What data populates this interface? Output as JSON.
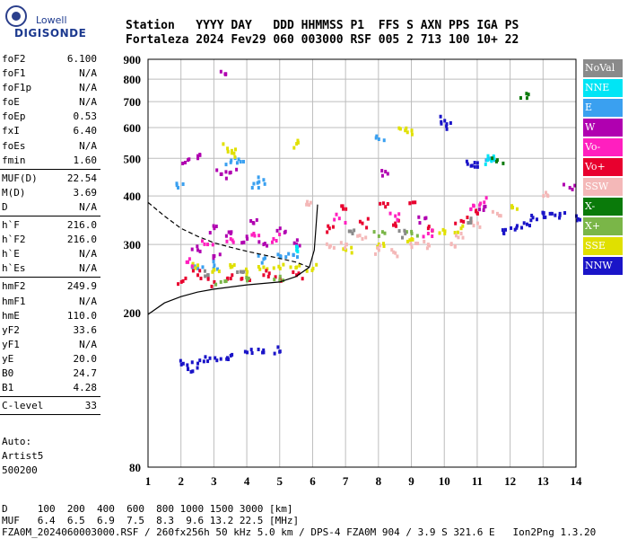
{
  "logo": {
    "line1": "Lowell",
    "line2": "DIGISONDE"
  },
  "header": {
    "line1": "Station   YYYY DAY   DDD HHMMSS P1  FFS S AXN PPS IGA PS",
    "line2": "Fortaleza 2024 Fev29 060 003000 RSF 005 2 713 100 10+ 22"
  },
  "params": {
    "group1": [
      {
        "k": "foF2",
        "v": "6.100"
      },
      {
        "k": "foF1",
        "v": "N/A"
      },
      {
        "k": "foF1p",
        "v": "N/A"
      },
      {
        "k": "foE",
        "v": "N/A"
      },
      {
        "k": "foEp",
        "v": "0.53"
      },
      {
        "k": "fxI",
        "v": "6.40"
      },
      {
        "k": "foEs",
        "v": "N/A"
      },
      {
        "k": "fmin",
        "v": "1.60"
      }
    ],
    "group2": [
      {
        "k": "MUF(D)",
        "v": "22.54"
      },
      {
        "k": "M(D)",
        "v": "3.69"
      },
      {
        "k": "D",
        "v": "N/A"
      }
    ],
    "group3": [
      {
        "k": "h`F",
        "v": "216.0"
      },
      {
        "k": "h`F2",
        "v": "216.0"
      },
      {
        "k": "h`E",
        "v": "N/A"
      },
      {
        "k": "h`Es",
        "v": "N/A"
      }
    ],
    "group4": [
      {
        "k": "hmF2",
        "v": "249.9"
      },
      {
        "k": "hmF1",
        "v": "N/A"
      },
      {
        "k": "hmE",
        "v": "110.0"
      },
      {
        "k": "yF2",
        "v": "33.6"
      },
      {
        "k": "yF1",
        "v": "N/A"
      },
      {
        "k": "yE",
        "v": "20.0"
      },
      {
        "k": "B0",
        "v": "24.7"
      },
      {
        "k": "B1",
        "v": "4.28"
      }
    ],
    "group5": [
      {
        "k": "C-level",
        "v": "33"
      }
    ]
  },
  "auto": {
    "l1": "Auto:",
    "l2": "Artist5",
    "l3": "500200"
  },
  "footer": {
    "l1": "D     100  200  400  600  800 1000 1500 3000 [km]",
    "l2": "MUF   6.4  6.5  6.9  7.5  8.3  9.6 13.2 22.5 [MHz]",
    "l3": "FZA0M_2024060003000.RSF / 260fx256h 50 kHz 5.0 km / DPS-4 FZA0M 904 / 3.9 S 321.6 E   Ion2Png 1.3.20"
  },
  "legend": [
    {
      "label": "NoVal",
      "color": "#8a8a8a"
    },
    {
      "label": "NNE",
      "color": "#00e5f5"
    },
    {
      "label": "E",
      "color": "#3aa0f0"
    },
    {
      "label": "W",
      "color": "#b000b0"
    },
    {
      "label": "Vo-",
      "color": "#ff1fbf"
    },
    {
      "label": "Vo+",
      "color": "#e8002e"
    },
    {
      "label": "SSW",
      "color": "#f4b8b8"
    },
    {
      "label": "X-",
      "color": "#0a7a0a"
    },
    {
      "label": "X+",
      "color": "#7ab648"
    },
    {
      "label": "SSE",
      "color": "#e0e000"
    },
    {
      "label": "NNW",
      "color": "#1a14c8"
    }
  ],
  "chart_data": {
    "type": "scatter",
    "title": "",
    "xlabel": "",
    "ylabel": "",
    "xlim": [
      1,
      14
    ],
    "ylim": [
      80,
      900
    ],
    "y_scale": "log",
    "x_ticks": [
      "1",
      "2",
      "3",
      "4",
      "5",
      "6",
      "7",
      "8",
      "9",
      "10",
      "11",
      "12",
      "13",
      "14"
    ],
    "y_ticks": [
      "80",
      "200",
      "300",
      "400",
      "500",
      "600",
      "700",
      "800",
      "900"
    ],
    "grid": true,
    "legend_placement": "right",
    "series": [
      {
        "name": "W",
        "points": [
          [
            3.35,
            825
          ],
          [
            2.2,
            495
          ],
          [
            2.5,
            500
          ],
          [
            3.2,
            455
          ],
          [
            3.5,
            460
          ],
          [
            3.0,
            330
          ],
          [
            3.5,
            320
          ],
          [
            4.0,
            310
          ],
          [
            4.5,
            300
          ],
          [
            2.5,
            290
          ],
          [
            3.0,
            280
          ],
          [
            4.2,
            340
          ],
          [
            5.0,
            330
          ],
          [
            5.5,
            300
          ],
          [
            8.2,
            462
          ],
          [
            9.4,
            350
          ],
          [
            11.2,
            375
          ],
          [
            13.8,
            420
          ]
        ]
      },
      {
        "name": "NNW",
        "points": [
          [
            10.0,
            625
          ],
          [
            10.05,
            605
          ],
          [
            11.0,
            475
          ],
          [
            10.8,
            478
          ],
          [
            11.8,
            320
          ],
          [
            12.2,
            335
          ],
          [
            12.5,
            338
          ],
          [
            12.8,
            348
          ],
          [
            13.0,
            360
          ],
          [
            13.2,
            360
          ],
          [
            13.5,
            360
          ],
          [
            14.0,
            355
          ],
          [
            2.0,
            147
          ],
          [
            2.2,
            143
          ],
          [
            2.5,
            148
          ],
          [
            2.8,
            150
          ],
          [
            3.2,
            152
          ],
          [
            3.5,
            155
          ],
          [
            4.0,
            158
          ],
          [
            4.5,
            158
          ],
          [
            5.0,
            159
          ]
        ]
      },
      {
        "name": "E",
        "points": [
          [
            1.9,
            420
          ],
          [
            3.5,
            488
          ],
          [
            3.8,
            490
          ],
          [
            4.2,
            430
          ],
          [
            4.5,
            440
          ],
          [
            8.0,
            560
          ],
          [
            11.4,
            500
          ],
          [
            5.0,
            280
          ],
          [
            5.4,
            282
          ],
          [
            4.5,
            275
          ],
          [
            3.0,
            265
          ],
          [
            2.5,
            260
          ]
        ]
      },
      {
        "name": "NNE",
        "points": [
          [
            11.3,
            495
          ],
          [
            11.5,
            497
          ],
          [
            5.5,
            290
          ]
        ]
      },
      {
        "name": "X-",
        "points": [
          [
            12.5,
            715
          ],
          [
            11.6,
            495
          ]
        ]
      },
      {
        "name": "SSE",
        "points": [
          [
            3.4,
            530
          ],
          [
            3.6,
            515
          ],
          [
            5.5,
            545
          ],
          [
            8.8,
            590
          ],
          [
            9.0,
            590
          ],
          [
            12.2,
            370
          ],
          [
            2.5,
            265
          ],
          [
            3.0,
            258
          ],
          [
            3.5,
            262
          ],
          [
            4.0,
            255
          ],
          [
            4.5,
            262
          ],
          [
            5.0,
            260
          ],
          [
            5.5,
            262
          ],
          [
            6.0,
            260
          ],
          [
            7.0,
            290
          ],
          [
            8.0,
            300
          ],
          [
            9.0,
            310
          ],
          [
            10.0,
            320
          ],
          [
            10.5,
            330
          ]
        ]
      },
      {
        "name": "Vo+",
        "points": [
          [
            2.0,
            240
          ],
          [
            2.5,
            250
          ],
          [
            3.0,
            240
          ],
          [
            3.5,
            245
          ],
          [
            4.0,
            245
          ],
          [
            4.5,
            250
          ],
          [
            5.0,
            245
          ],
          [
            5.5,
            250
          ],
          [
            6.5,
            330
          ],
          [
            7.5,
            340
          ],
          [
            8.5,
            340
          ],
          [
            9.5,
            330
          ],
          [
            10.5,
            345
          ],
          [
            11.0,
            360
          ],
          [
            7.0,
            370
          ],
          [
            8.2,
            375
          ],
          [
            9.1,
            385
          ]
        ]
      },
      {
        "name": "Vo-",
        "points": [
          [
            2.2,
            270
          ],
          [
            2.8,
            300
          ],
          [
            3.5,
            310
          ],
          [
            4.2,
            320
          ],
          [
            4.8,
            310
          ],
          [
            6.8,
            350
          ],
          [
            8.5,
            355
          ],
          [
            9.5,
            320
          ],
          [
            10.8,
            370
          ],
          [
            11.2,
            385
          ]
        ]
      },
      {
        "name": "SSW",
        "points": [
          [
            7.0,
            300
          ],
          [
            7.5,
            310
          ],
          [
            8.0,
            290
          ],
          [
            8.5,
            285
          ],
          [
            9.0,
            295
          ],
          [
            9.5,
            300
          ],
          [
            10.2,
            300
          ],
          [
            10.5,
            320
          ],
          [
            11.0,
            340
          ],
          [
            6.5,
            295
          ],
          [
            11.6,
            360
          ],
          [
            13.0,
            400
          ],
          [
            5.8,
            380
          ]
        ]
      },
      {
        "name": "X+",
        "points": [
          [
            3.2,
            240
          ],
          [
            4.0,
            242
          ],
          [
            5.0,
            248
          ],
          [
            8.0,
            315
          ],
          [
            9.0,
            320
          ]
        ]
      },
      {
        "name": "NoVal",
        "points": [
          [
            2.8,
            250
          ],
          [
            3.8,
            255
          ],
          [
            7.2,
            320
          ],
          [
            8.8,
            320
          ],
          [
            10.8,
            350
          ]
        ]
      }
    ],
    "traces": [
      {
        "name": "profile",
        "points": [
          [
            1.0,
            198
          ],
          [
            1.5,
            212
          ],
          [
            2.0,
            220
          ],
          [
            2.5,
            226
          ],
          [
            3.0,
            230
          ],
          [
            3.5,
            233
          ],
          [
            4.0,
            236
          ],
          [
            4.5,
            238
          ],
          [
            5.0,
            240
          ],
          [
            5.5,
            248
          ],
          [
            5.9,
            262
          ],
          [
            6.05,
            290
          ],
          [
            6.1,
            330
          ],
          [
            6.15,
            380
          ]
        ]
      },
      {
        "name": "upper-dashed",
        "points": [
          [
            1.0,
            385
          ],
          [
            1.5,
            355
          ],
          [
            2.0,
            330
          ],
          [
            2.5,
            315
          ],
          [
            3.0,
            303
          ],
          [
            3.5,
            295
          ],
          [
            4.0,
            288
          ],
          [
            4.5,
            282
          ],
          [
            5.0,
            276
          ],
          [
            5.5,
            270
          ],
          [
            5.9,
            262
          ]
        ]
      }
    ]
  }
}
